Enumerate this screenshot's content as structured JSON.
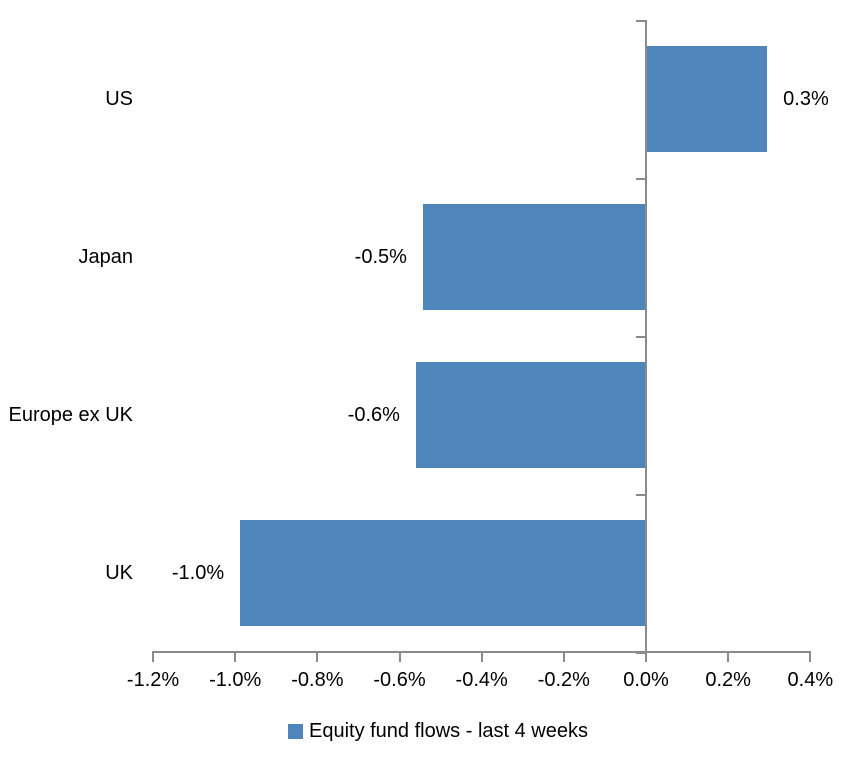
{
  "chart_data": {
    "type": "bar",
    "orientation": "horizontal",
    "title": "",
    "xlabel": "",
    "ylabel": "",
    "categories": [
      "US",
      "Japan",
      "Europe ex UK",
      "UK"
    ],
    "values": [
      0.3,
      -0.5,
      -0.6,
      -1.0
    ],
    "values_precise_pct": [
      0.295,
      -0.543,
      -0.56,
      -0.988
    ],
    "data_labels": [
      "0.3%",
      "-0.5%",
      "-0.6%",
      "-1.0%"
    ],
    "x_tick_labels": [
      "-1.2%",
      "-1.0%",
      "-0.8%",
      "-0.6%",
      "-0.4%",
      "-0.2%",
      "0.0%",
      "0.2%",
      "0.4%"
    ],
    "x_tick_values": [
      -1.2,
      -1.0,
      -0.8,
      -0.6,
      -0.4,
      -0.2,
      0.0,
      0.2,
      0.4
    ],
    "xlim": [
      -1.2,
      0.4
    ],
    "grid": false,
    "legend_position": "bottom",
    "legend_label": "Equity fund flows - last 4 weeks",
    "bar_color": "#4e86bc",
    "axis_color": "#8a8a8a",
    "text_color": "#000000",
    "background_color": "#ffffff"
  }
}
